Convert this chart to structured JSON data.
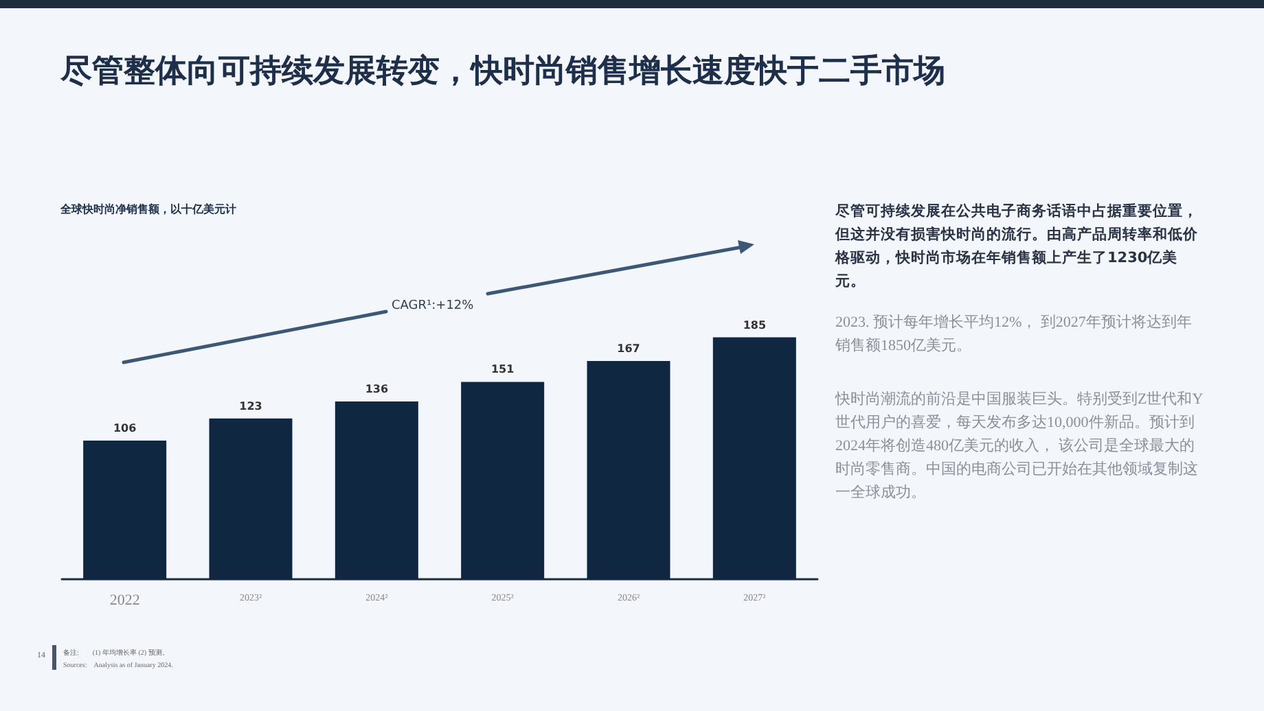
{
  "chart_data": {
    "type": "bar",
    "title": "尽管整体向可持续发展转变，快时尚销售增长速度快于二手市场",
    "subtitle": "全球快时尚净销售额，以十亿美元计",
    "categories": [
      "2022",
      "2023²",
      "2024²",
      "2025²",
      "2026²",
      "2027²"
    ],
    "values": [
      106,
      123,
      136,
      151,
      167,
      185
    ],
    "color": "#0f2740",
    "data_labels": true,
    "annotations": [
      "CAGR¹:+12%",
      "尽管可持续发展在公共电子商务话语中占据重要位置，但这并没有损害快时尚的流行。由高产品周转率和低价格驱动，快时尚市场在年销售额上产生了1230亿美元。",
      "2023. 预计每年增长平均12%， 到2027年预计将达到年销售额1850亿美元。",
      "快时尚潮流的前沿是中国服装巨头。特别受到Z世代和Y世代用户的喜爱，每天发布多达10,000件新品。预计到2024年将创造480亿美元的收入， 该公司是全球最大的时尚零售商。中国的电商公司已开始在其他领域复制这一全球成功。",
      "备注:　　(1) 年均增长率 (2) 预测。",
      "Sources:　Analysis as of January 2024.",
      "14"
    ]
  }
}
